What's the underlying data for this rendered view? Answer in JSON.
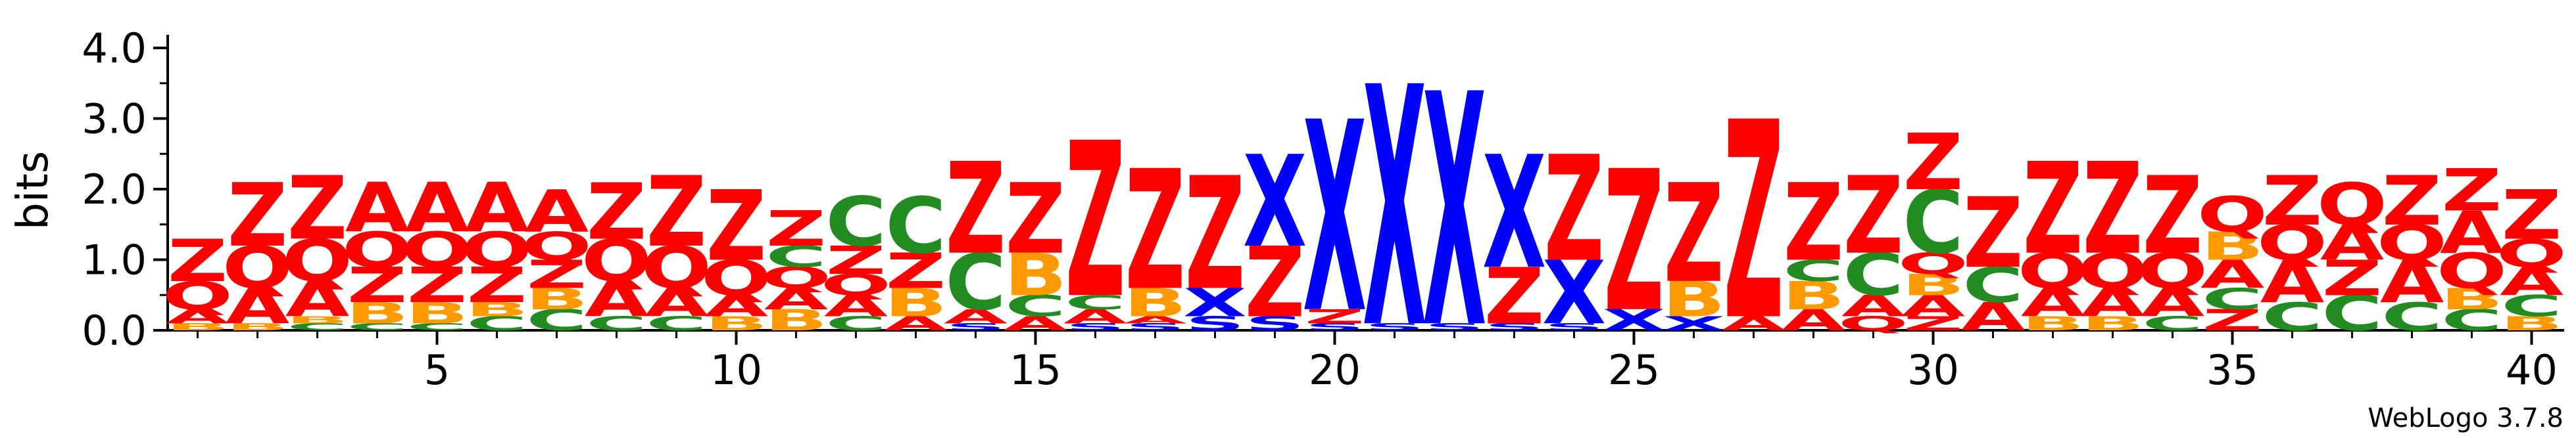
{
  "chart_data": {
    "type": "sequence-logo",
    "ylabel": "bits",
    "ylim": [
      0,
      4.0
    ],
    "yticks": [
      {
        "value": 0.0,
        "label": "0.0"
      },
      {
        "value": 1.0,
        "label": "1.0"
      },
      {
        "value": 2.0,
        "label": "2.0"
      },
      {
        "value": 3.0,
        "label": "3.0"
      },
      {
        "value": 4.0,
        "label": "4.0"
      }
    ],
    "xticks": [
      {
        "value": 5,
        "label": "5"
      },
      {
        "value": 10,
        "label": "10"
      },
      {
        "value": 15,
        "label": "15"
      },
      {
        "value": 20,
        "label": "20"
      },
      {
        "value": 25,
        "label": "25"
      },
      {
        "value": 30,
        "label": "30"
      },
      {
        "value": 35,
        "label": "35"
      },
      {
        "value": 40,
        "label": "40"
      }
    ],
    "positions": 40,
    "colors": {
      "Z": "#ff0000",
      "Q": "#ff0000",
      "A": "#ff0000",
      "B": "#ff9900",
      "C": "#228b22",
      "X": "#0000ff",
      "S": "#0000ff"
    },
    "stacks": [
      {
        "pos": 1,
        "letters": [
          [
            "B",
            0.1
          ],
          [
            "A",
            0.2
          ],
          [
            "Q",
            0.4
          ],
          [
            "Z",
            0.6
          ]
        ]
      },
      {
        "pos": 2,
        "letters": [
          [
            "B",
            0.1
          ],
          [
            "A",
            0.5
          ],
          [
            "Q",
            0.6
          ],
          [
            "Z",
            0.9
          ]
        ]
      },
      {
        "pos": 3,
        "letters": [
          [
            "C",
            0.1
          ],
          [
            "B",
            0.1
          ],
          [
            "A",
            0.5
          ],
          [
            "Q",
            0.6
          ],
          [
            "Z",
            0.9
          ]
        ]
      },
      {
        "pos": 4,
        "letters": [
          [
            "C",
            0.1
          ],
          [
            "B",
            0.3
          ],
          [
            "Z",
            0.5
          ],
          [
            "Q",
            0.5
          ],
          [
            "A",
            0.7
          ]
        ]
      },
      {
        "pos": 5,
        "letters": [
          [
            "C",
            0.1
          ],
          [
            "B",
            0.3
          ],
          [
            "Z",
            0.5
          ],
          [
            "Q",
            0.5
          ],
          [
            "A",
            0.7
          ]
        ]
      },
      {
        "pos": 6,
        "letters": [
          [
            "C",
            0.2
          ],
          [
            "B",
            0.2
          ],
          [
            "Z",
            0.5
          ],
          [
            "Q",
            0.5
          ],
          [
            "A",
            0.7
          ]
        ]
      },
      {
        "pos": 7,
        "letters": [
          [
            "C",
            0.3
          ],
          [
            "B",
            0.3
          ],
          [
            "Z",
            0.4
          ],
          [
            "Q",
            0.4
          ],
          [
            "A",
            0.6
          ]
        ]
      },
      {
        "pos": 8,
        "letters": [
          [
            "C",
            0.2
          ],
          [
            "A",
            0.5
          ],
          [
            "Q",
            0.6
          ],
          [
            "Z",
            0.8
          ]
        ]
      },
      {
        "pos": 9,
        "letters": [
          [
            "C",
            0.2
          ],
          [
            "A",
            0.4
          ],
          [
            "Q",
            0.6
          ],
          [
            "Z",
            1.0
          ]
        ]
      },
      {
        "pos": 10,
        "letters": [
          [
            "B",
            0.2
          ],
          [
            "A",
            0.3
          ],
          [
            "Q",
            0.5
          ],
          [
            "Z",
            1.0
          ]
        ]
      },
      {
        "pos": 11,
        "letters": [
          [
            "B",
            0.3
          ],
          [
            "A",
            0.3
          ],
          [
            "Q",
            0.3
          ],
          [
            "C",
            0.3
          ],
          [
            "Z",
            0.5
          ]
        ]
      },
      {
        "pos": 12,
        "letters": [
          [
            "C",
            0.2
          ],
          [
            "A",
            0.3
          ],
          [
            "Q",
            0.3
          ],
          [
            "Z",
            0.4
          ],
          [
            "C",
            0.7
          ]
        ]
      },
      {
        "pos": 13,
        "letters": [
          [
            "A",
            0.2
          ],
          [
            "B",
            0.4
          ],
          [
            "Z",
            0.5
          ],
          [
            "C",
            0.8
          ]
        ]
      },
      {
        "pos": 14,
        "letters": [
          [
            "S",
            0.1
          ],
          [
            "A",
            0.2
          ],
          [
            "C",
            0.8
          ],
          [
            "Z",
            1.3
          ]
        ]
      },
      {
        "pos": 15,
        "letters": [
          [
            "A",
            0.2
          ],
          [
            "C",
            0.3
          ],
          [
            "B",
            0.6
          ],
          [
            "Z",
            1.0
          ]
        ]
      },
      {
        "pos": 16,
        "letters": [
          [
            "S",
            0.1
          ],
          [
            "A",
            0.2
          ],
          [
            "C",
            0.2
          ],
          [
            "Z",
            2.2
          ]
        ]
      },
      {
        "pos": 17,
        "letters": [
          [
            "S",
            0.1
          ],
          [
            "A",
            0.1
          ],
          [
            "B",
            0.4
          ],
          [
            "Z",
            1.7
          ]
        ]
      },
      {
        "pos": 18,
        "letters": [
          [
            "S",
            0.2
          ],
          [
            "X",
            0.4
          ],
          [
            "Z",
            1.6
          ]
        ]
      },
      {
        "pos": 19,
        "letters": [
          [
            "S",
            0.2
          ],
          [
            "Z",
            1.0
          ],
          [
            "X",
            1.3
          ]
        ]
      },
      {
        "pos": 20,
        "letters": [
          [
            "S",
            0.1
          ],
          [
            "Z",
            0.2
          ],
          [
            "X",
            2.7
          ]
        ]
      },
      {
        "pos": 21,
        "letters": [
          [
            "S",
            0.1
          ],
          [
            "X",
            3.4
          ]
        ]
      },
      {
        "pos": 22,
        "letters": [
          [
            "S",
            0.1
          ],
          [
            "X",
            3.3
          ]
        ]
      },
      {
        "pos": 23,
        "letters": [
          [
            "S",
            0.1
          ],
          [
            "Z",
            0.8
          ],
          [
            "X",
            1.6
          ]
        ]
      },
      {
        "pos": 24,
        "letters": [
          [
            "S",
            0.1
          ],
          [
            "X",
            0.9
          ],
          [
            "Z",
            1.5
          ]
        ]
      },
      {
        "pos": 25,
        "letters": [
          [
            "X",
            0.3
          ],
          [
            "Z",
            2.0
          ]
        ]
      },
      {
        "pos": 26,
        "letters": [
          [
            "X",
            0.2
          ],
          [
            "B",
            0.5
          ],
          [
            "Z",
            1.4
          ]
        ]
      },
      {
        "pos": 27,
        "letters": [
          [
            "A",
            0.2
          ],
          [
            "Z",
            2.8
          ]
        ]
      },
      {
        "pos": 28,
        "letters": [
          [
            "A",
            0.3
          ],
          [
            "B",
            0.4
          ],
          [
            "C",
            0.3
          ],
          [
            "Z",
            1.1
          ]
        ]
      },
      {
        "pos": 29,
        "letters": [
          [
            "Q",
            0.2
          ],
          [
            "A",
            0.3
          ],
          [
            "C",
            0.6
          ],
          [
            "Z",
            1.1
          ]
        ]
      },
      {
        "pos": 30,
        "letters": [
          [
            "Z",
            0.2
          ],
          [
            "A",
            0.3
          ],
          [
            "B",
            0.3
          ],
          [
            "Q",
            0.3
          ],
          [
            "C",
            0.9
          ],
          [
            "Z",
            0.8
          ]
        ]
      },
      {
        "pos": 31,
        "letters": [
          [
            "A",
            0.4
          ],
          [
            "C",
            0.5
          ],
          [
            "Z",
            1.0
          ]
        ]
      },
      {
        "pos": 32,
        "letters": [
          [
            "B",
            0.2
          ],
          [
            "A",
            0.4
          ],
          [
            "Q",
            0.5
          ],
          [
            "Z",
            1.3
          ]
        ]
      },
      {
        "pos": 33,
        "letters": [
          [
            "B",
            0.2
          ],
          [
            "A",
            0.4
          ],
          [
            "Q",
            0.5
          ],
          [
            "Z",
            1.3
          ]
        ]
      },
      {
        "pos": 34,
        "letters": [
          [
            "C",
            0.2
          ],
          [
            "A",
            0.4
          ],
          [
            "Q",
            0.5
          ],
          [
            "Z",
            1.1
          ]
        ]
      },
      {
        "pos": 35,
        "letters": [
          [
            "Z",
            0.3
          ],
          [
            "C",
            0.3
          ],
          [
            "A",
            0.4
          ],
          [
            "B",
            0.4
          ],
          [
            "Q",
            0.5
          ]
        ]
      },
      {
        "pos": 36,
        "letters": [
          [
            "C",
            0.4
          ],
          [
            "A",
            0.6
          ],
          [
            "Q",
            0.5
          ],
          [
            "Z",
            0.7
          ]
        ]
      },
      {
        "pos": 37,
        "letters": [
          [
            "C",
            0.5
          ],
          [
            "Z",
            0.5
          ],
          [
            "A",
            0.5
          ],
          [
            "Q",
            0.6
          ]
        ]
      },
      {
        "pos": 38,
        "letters": [
          [
            "C",
            0.4
          ],
          [
            "A",
            0.6
          ],
          [
            "Q",
            0.5
          ],
          [
            "Z",
            0.7
          ]
        ]
      },
      {
        "pos": 39,
        "letters": [
          [
            "C",
            0.3
          ],
          [
            "B",
            0.3
          ],
          [
            "Q",
            0.5
          ],
          [
            "A",
            0.6
          ],
          [
            "Z",
            0.6
          ]
        ]
      },
      {
        "pos": 40,
        "letters": [
          [
            "B",
            0.2
          ],
          [
            "C",
            0.3
          ],
          [
            "A",
            0.4
          ],
          [
            "Q",
            0.4
          ],
          [
            "Z",
            0.7
          ]
        ]
      }
    ]
  },
  "footer": {
    "credit": "WebLogo 3.7.8"
  }
}
